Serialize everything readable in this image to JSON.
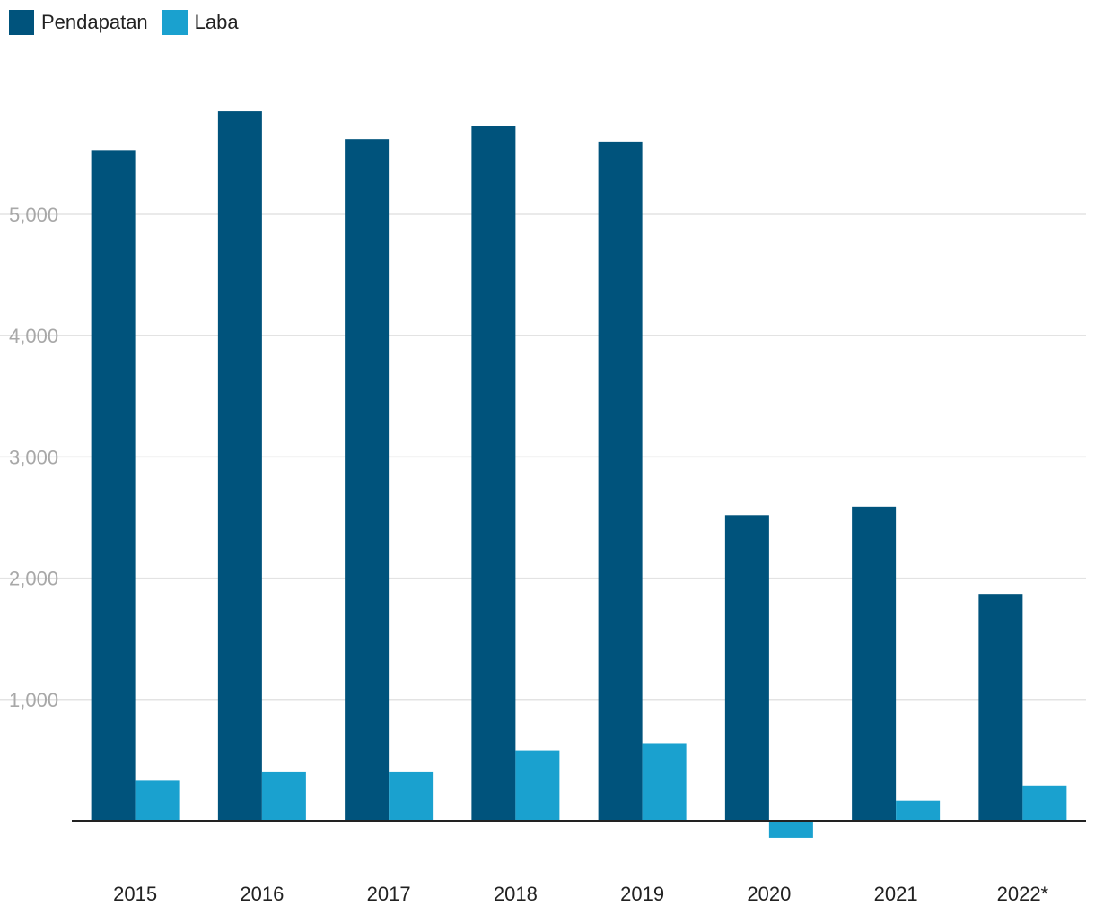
{
  "legend": [
    {
      "label": "Pendapatan",
      "color": "#00537c"
    },
    {
      "label": "Laba",
      "color": "#1aa1cf"
    }
  ],
  "chart_data": {
    "type": "bar",
    "categories": [
      "2015",
      "2016",
      "2017",
      "2018",
      "2019",
      "2020",
      "2021",
      "2022*"
    ],
    "series": [
      {
        "name": "Pendapatan",
        "color": "#00537c",
        "values": [
          5530,
          5850,
          5620,
          5730,
          5600,
          2520,
          2590,
          1870
        ]
      },
      {
        "name": "Laba",
        "color": "#1aa1cf",
        "values": [
          330,
          400,
          400,
          580,
          640,
          -140,
          165,
          290
        ]
      }
    ],
    "yticks": [
      1000,
      2000,
      3000,
      4000,
      5000
    ],
    "ytick_labels": [
      "1,000",
      "2,000",
      "3,000",
      "4,000",
      "5,000"
    ],
    "ylim": [
      -200,
      6000
    ],
    "grid": true,
    "legend_position": "top-left"
  }
}
